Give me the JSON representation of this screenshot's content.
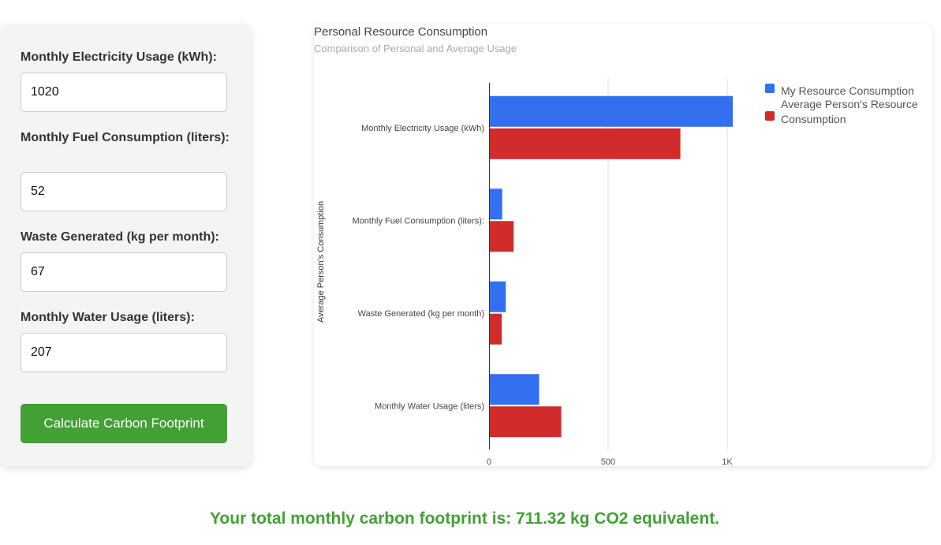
{
  "form": {
    "fields": [
      {
        "label": "Monthly Electricity Usage (kWh):",
        "value": "1020"
      },
      {
        "label": "Monthly Fuel Consumption (liters):",
        "value": "52"
      },
      {
        "label": "Waste Generated (kg per month):",
        "value": "67"
      },
      {
        "label": "Monthly Water Usage (liters):",
        "value": "207"
      }
    ],
    "button_label": "Calculate Carbon Footprint"
  },
  "result": {
    "text": "Your total monthly carbon footprint is: 711.32 kg CO2 equivalent."
  },
  "colors": {
    "accent_green": "#43a035",
    "series_blue": "#3370f0",
    "series_red": "#d12b2b"
  },
  "chart_data": {
    "type": "bar",
    "orientation": "horizontal",
    "title": "Personal Resource Consumption",
    "subtitle": "Comparison of Personal and Average Usage",
    "ylabel": "Average Person's Consumption",
    "xlabel": "",
    "categories": [
      "Monthly Electricity Usage (kWh)",
      "Monthly Fuel Consumption (liters):",
      "Waste Generated (kg per month)",
      "Monthly Water Usage (liters)"
    ],
    "series": [
      {
        "name": "My Resource Consumption",
        "values": [
          1020,
          52,
          67,
          207
        ],
        "color": "#3370f0"
      },
      {
        "name": "Average Person's Resource Consumption",
        "values": [
          800,
          100,
          50,
          300
        ],
        "color": "#d12b2b"
      }
    ],
    "xlim": [
      0,
      1000
    ],
    "xticks": [
      0,
      500,
      1000
    ],
    "xtick_labels": [
      "0",
      "500",
      "1K"
    ],
    "legend_position": "right",
    "grid": true
  }
}
